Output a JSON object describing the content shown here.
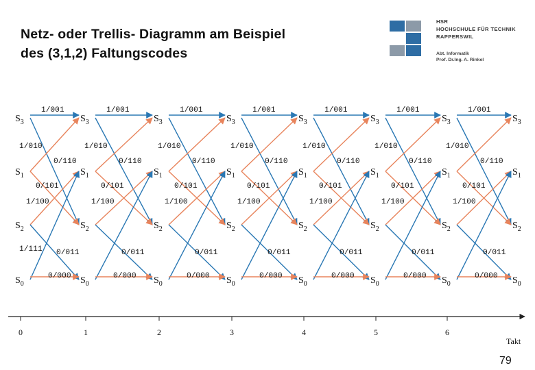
{
  "title_line1": "Netz- oder Trellis- Diagramm am Beispiel",
  "title_line2": "des (3,1,2) Faltungscodes",
  "logo": {
    "lines": [
      "HSR",
      "HOCHSCHULE FÜR TECHNIK",
      "RAPPERSWIL"
    ],
    "sub_lines": [
      "Abt. Informatik",
      "Prof. Dr.Ing. A. Rinkel"
    ],
    "colors": {
      "blue": "#2e6da4",
      "gray": "#8c9aa8"
    }
  },
  "states": [
    {
      "key": "S3",
      "name": "S",
      "sub": "3"
    },
    {
      "key": "S1",
      "name": "S",
      "sub": "1"
    },
    {
      "key": "S2",
      "name": "S",
      "sub": "2"
    },
    {
      "key": "S0",
      "name": "S",
      "sub": "0"
    }
  ],
  "time_ticks": [
    "0",
    "1",
    "2",
    "3",
    "4",
    "5",
    "6"
  ],
  "axis_label": "Takt",
  "transitions": [
    {
      "from": "S3",
      "to": "S3",
      "label": "1/001",
      "color": "#2a78b4"
    },
    {
      "from": "S3",
      "to": "S2",
      "label": "0/110",
      "color": "#2a78b4"
    },
    {
      "from": "S1",
      "to": "S3",
      "label": "1/010",
      "color": "#e8845c"
    },
    {
      "from": "S1",
      "to": "S2",
      "label": "0/101",
      "color": "#e8845c"
    },
    {
      "from": "S2",
      "to": "S1",
      "label": "1/100",
      "color": "#e8845c"
    },
    {
      "from": "S2",
      "to": "S0",
      "label": "0/011",
      "color": "#2a78b4"
    },
    {
      "from": "S0",
      "to": "S1",
      "label": "1/111",
      "color": "#2a78b4"
    },
    {
      "from": "S0",
      "to": "S0",
      "label": "0/000",
      "color": "#e8845c"
    }
  ],
  "page_number": "79"
}
